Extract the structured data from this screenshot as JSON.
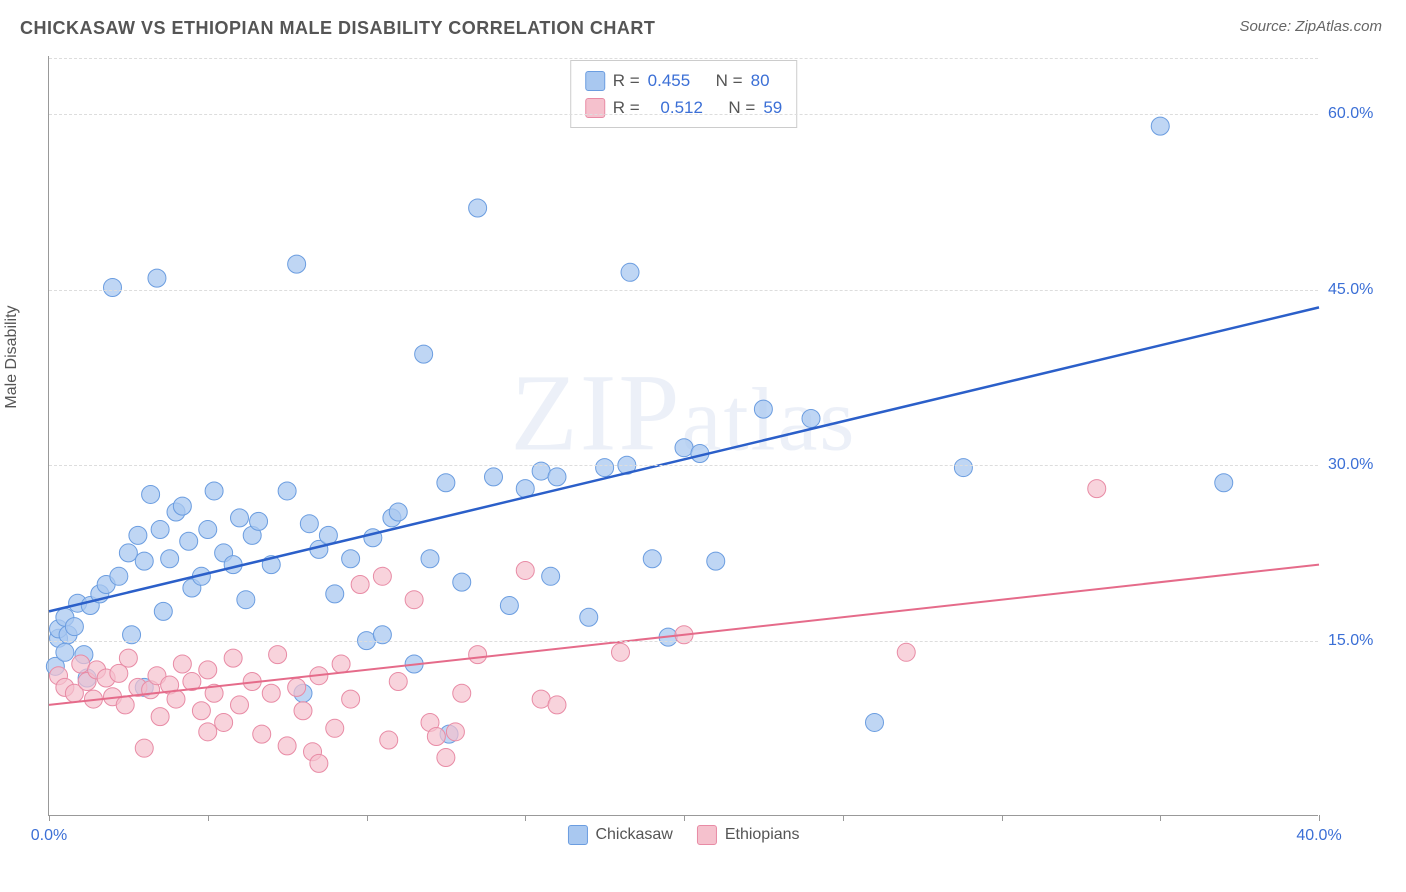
{
  "title": "CHICKASAW VS ETHIOPIAN MALE DISABILITY CORRELATION CHART",
  "source": "Source: ZipAtlas.com",
  "watermark": "ZIPatlas",
  "y_axis_title": "Male Disability",
  "chart": {
    "type": "scatter",
    "xlim": [
      0,
      40
    ],
    "ylim": [
      0,
      65
    ],
    "x_ticks": [
      0,
      5,
      10,
      15,
      20,
      25,
      30,
      35,
      40
    ],
    "x_tick_labels": {
      "0": "0.0%",
      "40": "40.0%"
    },
    "y_gridlines": [
      15,
      30,
      45,
      60
    ],
    "y_tick_labels": {
      "15": "15.0%",
      "30": "30.0%",
      "45": "45.0%",
      "60": "60.0%"
    },
    "grid_color": "#dddddd",
    "axis_color": "#999999",
    "background_color": "#ffffff",
    "series": [
      {
        "name": "Chickasaw",
        "marker_fill": "#a9c8f0",
        "marker_stroke": "#6b9de0",
        "marker_radius": 9,
        "marker_opacity": 0.75,
        "line_color": "#2b5fc9",
        "line_width": 2.5,
        "trend": {
          "x1": 0,
          "y1": 17.5,
          "x2": 40,
          "y2": 43.5
        },
        "R": "0.455",
        "N": "80",
        "points": [
          [
            0.2,
            12.8
          ],
          [
            0.3,
            15.2
          ],
          [
            0.3,
            16.0
          ],
          [
            0.5,
            14.0
          ],
          [
            0.5,
            17.0
          ],
          [
            0.6,
            15.5
          ],
          [
            0.8,
            16.2
          ],
          [
            0.9,
            18.2
          ],
          [
            1.1,
            13.8
          ],
          [
            1.2,
            11.8
          ],
          [
            1.3,
            18.0
          ],
          [
            1.6,
            19.0
          ],
          [
            1.8,
            19.8
          ],
          [
            2.0,
            45.2
          ],
          [
            2.2,
            20.5
          ],
          [
            2.5,
            22.5
          ],
          [
            2.6,
            15.5
          ],
          [
            2.8,
            24.0
          ],
          [
            3.0,
            21.8
          ],
          [
            3.0,
            11.0
          ],
          [
            3.2,
            27.5
          ],
          [
            3.4,
            46.0
          ],
          [
            3.5,
            24.5
          ],
          [
            3.6,
            17.5
          ],
          [
            3.8,
            22.0
          ],
          [
            4.0,
            26.0
          ],
          [
            4.2,
            26.5
          ],
          [
            4.4,
            23.5
          ],
          [
            4.5,
            19.5
          ],
          [
            4.8,
            20.5
          ],
          [
            5.0,
            24.5
          ],
          [
            5.2,
            27.8
          ],
          [
            5.5,
            22.5
          ],
          [
            5.8,
            21.5
          ],
          [
            6.0,
            25.5
          ],
          [
            6.2,
            18.5
          ],
          [
            6.4,
            24.0
          ],
          [
            6.6,
            25.2
          ],
          [
            7.0,
            21.5
          ],
          [
            7.5,
            27.8
          ],
          [
            7.8,
            47.2
          ],
          [
            8.0,
            10.5
          ],
          [
            8.2,
            25.0
          ],
          [
            8.5,
            22.8
          ],
          [
            8.8,
            24.0
          ],
          [
            9.0,
            19.0
          ],
          [
            9.5,
            22.0
          ],
          [
            10.0,
            15.0
          ],
          [
            10.2,
            23.8
          ],
          [
            10.5,
            15.5
          ],
          [
            10.8,
            25.5
          ],
          [
            11.0,
            26.0
          ],
          [
            11.5,
            13.0
          ],
          [
            11.8,
            39.5
          ],
          [
            12.0,
            22.0
          ],
          [
            12.5,
            28.5
          ],
          [
            12.6,
            7.0
          ],
          [
            13.0,
            20.0
          ],
          [
            13.5,
            52.0
          ],
          [
            14.0,
            29.0
          ],
          [
            14.5,
            18.0
          ],
          [
            15.0,
            28.0
          ],
          [
            15.5,
            29.5
          ],
          [
            15.8,
            20.5
          ],
          [
            16.0,
            29.0
          ],
          [
            17.0,
            17.0
          ],
          [
            17.5,
            29.8
          ],
          [
            18.2,
            30.0
          ],
          [
            18.3,
            46.5
          ],
          [
            19.0,
            22.0
          ],
          [
            19.5,
            15.3
          ],
          [
            20.0,
            31.5
          ],
          [
            20.5,
            31.0
          ],
          [
            21.0,
            21.8
          ],
          [
            22.5,
            34.8
          ],
          [
            24.0,
            34.0
          ],
          [
            26.0,
            8.0
          ],
          [
            28.8,
            29.8
          ],
          [
            35.0,
            59.0
          ],
          [
            37.0,
            28.5
          ]
        ]
      },
      {
        "name": "Ethiopians",
        "marker_fill": "#f5c1cd",
        "marker_stroke": "#e88ba5",
        "marker_radius": 9,
        "marker_opacity": 0.7,
        "line_color": "#e56b8a",
        "line_width": 2,
        "trend": {
          "x1": 0,
          "y1": 9.5,
          "x2": 40,
          "y2": 21.5
        },
        "R": "0.512",
        "N": "59",
        "points": [
          [
            0.3,
            12.0
          ],
          [
            0.5,
            11.0
          ],
          [
            0.8,
            10.5
          ],
          [
            1.0,
            13.0
          ],
          [
            1.2,
            11.5
          ],
          [
            1.4,
            10.0
          ],
          [
            1.5,
            12.5
          ],
          [
            1.8,
            11.8
          ],
          [
            2.0,
            10.2
          ],
          [
            2.2,
            12.2
          ],
          [
            2.4,
            9.5
          ],
          [
            2.5,
            13.5
          ],
          [
            2.8,
            11.0
          ],
          [
            3.0,
            5.8
          ],
          [
            3.2,
            10.8
          ],
          [
            3.4,
            12.0
          ],
          [
            3.5,
            8.5
          ],
          [
            3.8,
            11.2
          ],
          [
            4.0,
            10.0
          ],
          [
            4.2,
            13.0
          ],
          [
            4.5,
            11.5
          ],
          [
            4.8,
            9.0
          ],
          [
            5.0,
            7.2
          ],
          [
            5.0,
            12.5
          ],
          [
            5.2,
            10.5
          ],
          [
            5.5,
            8.0
          ],
          [
            5.8,
            13.5
          ],
          [
            6.0,
            9.5
          ],
          [
            6.4,
            11.5
          ],
          [
            6.7,
            7.0
          ],
          [
            7.0,
            10.5
          ],
          [
            7.2,
            13.8
          ],
          [
            7.5,
            6.0
          ],
          [
            7.8,
            11.0
          ],
          [
            8.0,
            9.0
          ],
          [
            8.3,
            5.5
          ],
          [
            8.5,
            12.0
          ],
          [
            8.5,
            4.5
          ],
          [
            9.0,
            7.5
          ],
          [
            9.2,
            13.0
          ],
          [
            9.5,
            10.0
          ],
          [
            9.8,
            19.8
          ],
          [
            10.5,
            20.5
          ],
          [
            10.7,
            6.5
          ],
          [
            11.0,
            11.5
          ],
          [
            11.5,
            18.5
          ],
          [
            12.0,
            8.0
          ],
          [
            12.2,
            6.8
          ],
          [
            12.5,
            5.0
          ],
          [
            12.8,
            7.2
          ],
          [
            13.0,
            10.5
          ],
          [
            13.5,
            13.8
          ],
          [
            15.0,
            21.0
          ],
          [
            15.5,
            10.0
          ],
          [
            16.0,
            9.5
          ],
          [
            18.0,
            14.0
          ],
          [
            20.0,
            15.5
          ],
          [
            27.0,
            14.0
          ],
          [
            33.0,
            28.0
          ]
        ]
      }
    ]
  },
  "stats_labels": {
    "R": "R =",
    "N": "N ="
  },
  "legend": {
    "series1": "Chickasaw",
    "series2": "Ethiopians"
  }
}
